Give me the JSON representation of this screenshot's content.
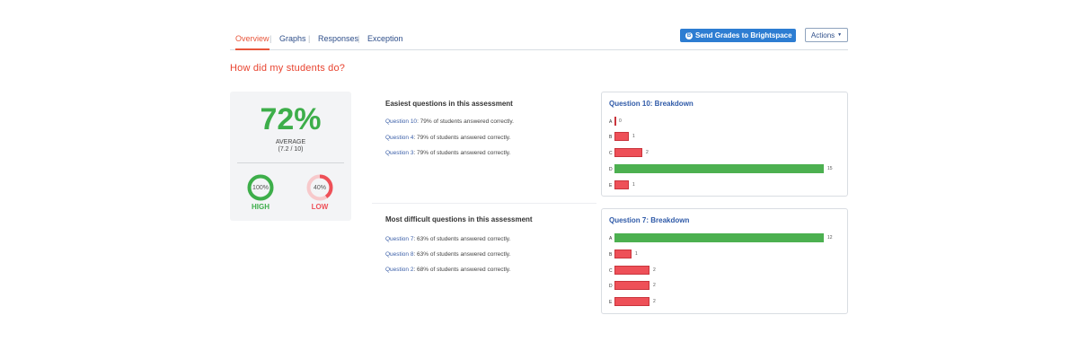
{
  "tabs": [
    {
      "label": "Overview",
      "active": true
    },
    {
      "label": "Graphs",
      "active": false
    },
    {
      "label": "Responses",
      "active": false
    },
    {
      "label": "Exception",
      "active": false
    }
  ],
  "tab_separator": "|",
  "header": {
    "send_button_label": "Send Grades to Brightspace",
    "send_button_logo": "B",
    "actions_label": "Actions",
    "actions_caret": "▼"
  },
  "page_title": "How did my students do?",
  "summary": {
    "average_percent": "72%",
    "average_label": "AVERAGE",
    "average_score": "(7.2 / 10)",
    "high": {
      "percent": "100%",
      "value": 1.0,
      "label": "HIGH",
      "color": "#3dae4a"
    },
    "low": {
      "percent": "40%",
      "value": 0.4,
      "label": "LOW",
      "color": "#ee5058"
    }
  },
  "easiest": {
    "heading": "Easiest questions in this assessment",
    "items": [
      {
        "question": "Question 10",
        "text": ": 79% of students answered correctly."
      },
      {
        "question": "Question 4",
        "text": ": 79% of students answered correctly."
      },
      {
        "question": "Question 3",
        "text": ": 79% of students answered correctly."
      }
    ]
  },
  "difficult": {
    "heading": "Most difficult questions in this assessment",
    "items": [
      {
        "question": "Question 7",
        "text": ": 63% of students answered correctly."
      },
      {
        "question": "Question 8",
        "text": ": 63% of students answered correctly."
      },
      {
        "question": "Question 2",
        "text": ": 68% of students answered correctly."
      }
    ]
  },
  "breakdowns": [
    {
      "title": "Question 10: Breakdown",
      "max": 15,
      "options": [
        {
          "label": "A",
          "count": 0,
          "correct": false
        },
        {
          "label": "B",
          "count": 1,
          "correct": false
        },
        {
          "label": "C",
          "count": 2,
          "correct": false
        },
        {
          "label": "D",
          "count": 15,
          "correct": true
        },
        {
          "label": "E",
          "count": 1,
          "correct": false
        }
      ]
    },
    {
      "title": "Question 7: Breakdown",
      "max": 12,
      "options": [
        {
          "label": "A",
          "count": 12,
          "correct": true
        },
        {
          "label": "B",
          "count": 1,
          "correct": false
        },
        {
          "label": "C",
          "count": 2,
          "correct": false
        },
        {
          "label": "D",
          "count": 2,
          "correct": false
        },
        {
          "label": "E",
          "count": 2,
          "correct": false
        }
      ]
    }
  ],
  "colors": {
    "accent": "#e8563b",
    "brand_blue": "#2d7dd2",
    "correct": "#4cb050",
    "incorrect": "#ee5058"
  }
}
